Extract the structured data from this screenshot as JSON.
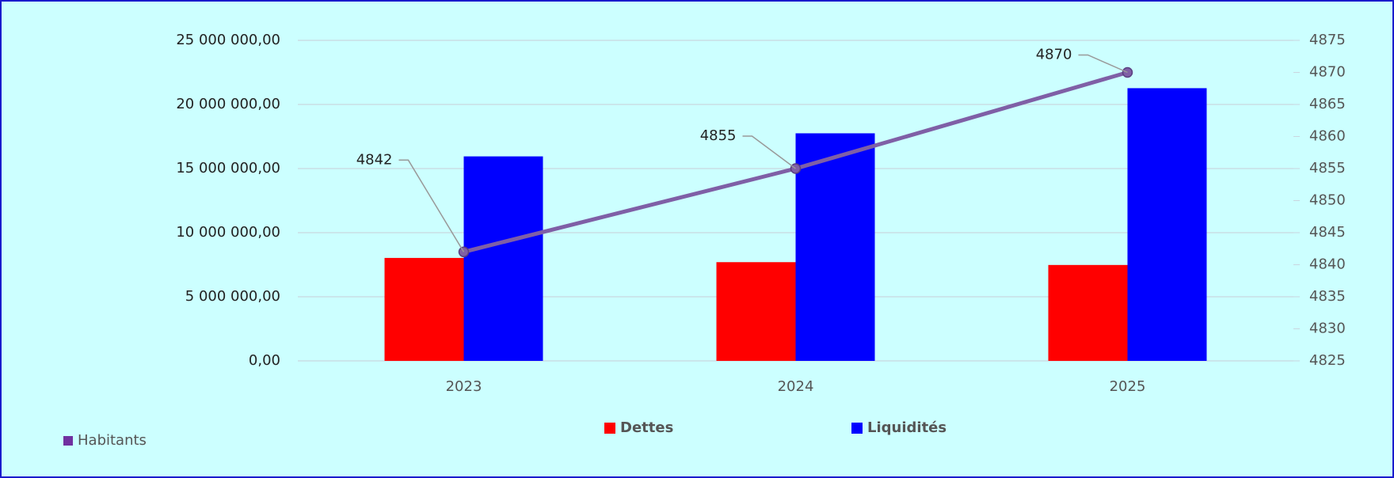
{
  "chart_data": {
    "type": "bar",
    "categories": [
      "2023",
      "2024",
      "2025"
    ],
    "series": [
      {
        "name": "Dettes",
        "color": "#ff0000",
        "values": [
          8030000,
          7700000,
          7480000
        ]
      },
      {
        "name": "Liquidités",
        "color": "#0000ff",
        "values": [
          15950000,
          17750000,
          21270000
        ]
      },
      {
        "name": "Habitants",
        "color": "#7f5fa6",
        "type": "line",
        "axis": "y2",
        "values": [
          4842,
          4855,
          4870
        ]
      }
    ],
    "ylim": [
      0,
      25000000
    ],
    "yticks": [
      {
        "value": 0,
        "label": "0,00"
      },
      {
        "value": 5000000,
        "label": "5 000 000,00"
      },
      {
        "value": 10000000,
        "label": "10 000 000,00"
      },
      {
        "value": 15000000,
        "label": "15 000 000,00"
      },
      {
        "value": 20000000,
        "label": "20 000 000,00"
      },
      {
        "value": 25000000,
        "label": "25 000 000,00"
      }
    ],
    "y2lim": [
      4825,
      4875
    ],
    "y2ticks": [
      4825,
      4830,
      4835,
      4840,
      4845,
      4850,
      4855,
      4860,
      4865,
      4870,
      4875
    ],
    "grid": true
  }
}
